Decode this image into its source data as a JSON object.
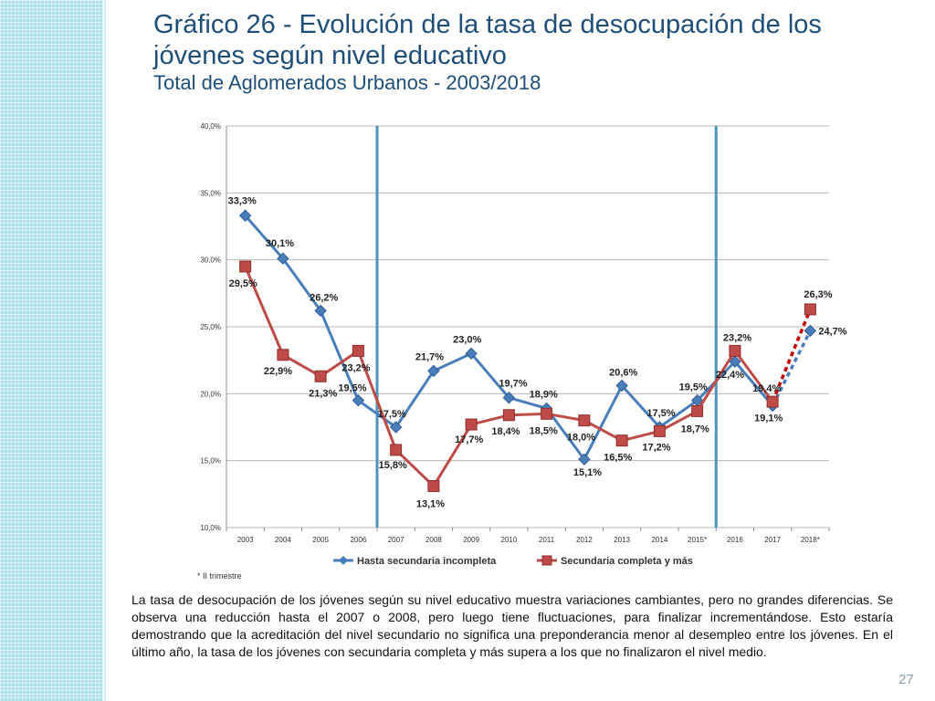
{
  "slide": {
    "title_line1": "Gráfico 26 - Evolución de la tasa de desocupación de los",
    "title_line2": "jóvenes según nivel educativo",
    "subtitle": "Total de Aglomerados Urbanos - 2003/2018",
    "body": "La tasa de desocupación de los jóvenes según su nivel educativo muestra variaciones cambiantes, pero no grandes diferencias. Se observa una reducción hasta el 2007 o 2008, pero luego tiene fluctuaciones, para finalizar incrementándose. Esto estaría demostrando que la acreditación del nivel secundario no significa una preponderancia menor al desempleo entre los jóvenes. En el último año, la tasa de los jóvenes con secundaria completa y más supera a los que no finalizaron el nivel medio.",
    "page_number": "27",
    "colors": {
      "title": "#1f4e79",
      "band": "#a9e3ea"
    }
  },
  "chart_data": {
    "type": "line",
    "categories": [
      "2003",
      "2004",
      "2005",
      "2006",
      "2007",
      "2008",
      "2009",
      "2010",
      "2011",
      "2012",
      "2013",
      "2014",
      "2015*",
      "2016",
      "2017",
      "2018*"
    ],
    "ylim": [
      10,
      40
    ],
    "yticks": [
      10,
      15,
      20,
      25,
      30,
      35,
      40
    ],
    "ytick_labels": [
      "10,0%",
      "15,0%",
      "20,0%",
      "25,0%",
      "30,0%",
      "35,0%",
      "40,0%"
    ],
    "grid": true,
    "legend_position": "bottom",
    "vlines_after": [
      "2006",
      "2015*"
    ],
    "footnote": "* II trimestre",
    "series": [
      {
        "name": "Hasta secundaria incompleta",
        "color": "#4a7ebb",
        "marker": "diamond",
        "values": [
          33.3,
          30.1,
          26.2,
          19.5,
          17.5,
          21.7,
          23.0,
          19.7,
          18.9,
          15.1,
          20.6,
          17.5,
          19.5,
          22.4,
          19.1,
          24.7
        ],
        "labels": [
          "33,3%",
          "30,1%",
          "26,2%",
          "19,5%",
          "17,5%",
          "21,7%",
          "23,0%",
          "19,7%",
          "18,9%",
          "15,1%",
          "20,6%",
          "17,5%",
          "19,5%",
          "22,4%",
          "19,1%",
          "24,7%"
        ]
      },
      {
        "name": "Secundaria completa y más",
        "color": "#be4b48",
        "marker": "square",
        "values": [
          29.5,
          22.9,
          21.3,
          23.2,
          15.8,
          13.1,
          17.7,
          18.4,
          18.5,
          18.0,
          16.5,
          17.2,
          18.7,
          23.2,
          19.4,
          26.3
        ],
        "labels": [
          "29,5%",
          "22,9%",
          "21,3%",
          "23,2%",
          "15,8%",
          "13,1%",
          "17,7%",
          "18,4%",
          "18,5%",
          "18,0%",
          "16,5%",
          "17,2%",
          "18,7%",
          "23,2%",
          "19,4%",
          "26,3%"
        ]
      }
    ]
  }
}
